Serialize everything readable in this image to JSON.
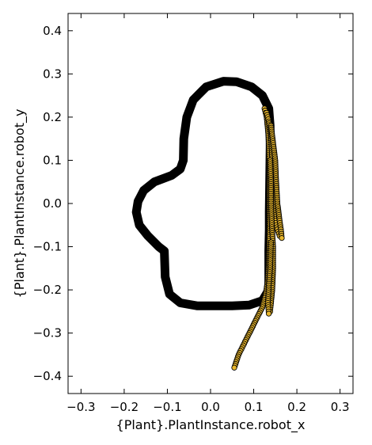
{
  "chart_data": {
    "type": "scatter",
    "title": "",
    "xlabel": "{Plant}.PlantInstance.robot_x",
    "ylabel": "{Plant}.PlantInstance.robot_y",
    "xlim": [
      -0.33,
      0.33
    ],
    "ylim": [
      -0.44,
      0.44
    ],
    "xticks": [
      -0.3,
      -0.2,
      -0.1,
      0.0,
      0.1,
      0.2,
      0.3
    ],
    "xtick_labels": [
      "−0.3",
      "−0.2",
      "−0.1",
      "0.0",
      "0.1",
      "0.2",
      "0.3"
    ],
    "yticks": [
      0.4,
      0.3,
      0.2,
      0.1,
      0.0,
      -0.1,
      -0.2,
      -0.3,
      -0.4
    ],
    "ytick_labels": [
      "0.4",
      "0.3",
      "0.2",
      "0.1",
      "0.0",
      "−0.1",
      "−0.2",
      "−0.3",
      "−0.4"
    ],
    "grid": false,
    "legend": "none",
    "colors": {
      "boundary": "#000000",
      "points": "#e8b62c",
      "point_edge": "#000000"
    },
    "series": [
      {
        "kind": "boundary",
        "points": [
          [
            0.135,
            -0.11
          ],
          [
            0.135,
            -0.2
          ],
          [
            0.12,
            -0.225
          ],
          [
            0.09,
            -0.235
          ],
          [
            0.05,
            -0.237
          ],
          [
            -0.03,
            -0.237
          ],
          [
            -0.07,
            -0.23
          ],
          [
            -0.095,
            -0.21
          ],
          [
            -0.105,
            -0.17
          ],
          [
            -0.107,
            -0.11
          ],
          [
            -0.12,
            -0.1
          ],
          [
            -0.145,
            -0.075
          ],
          [
            -0.165,
            -0.05
          ],
          [
            -0.172,
            -0.02
          ],
          [
            -0.168,
            0.005
          ],
          [
            -0.155,
            0.03
          ],
          [
            -0.13,
            0.05
          ],
          [
            -0.09,
            0.065
          ],
          [
            -0.07,
            0.08
          ],
          [
            -0.063,
            0.1
          ],
          [
            -0.062,
            0.15
          ],
          [
            -0.055,
            0.2
          ],
          [
            -0.04,
            0.24
          ],
          [
            -0.01,
            0.27
          ],
          [
            0.03,
            0.283
          ],
          [
            0.06,
            0.282
          ],
          [
            0.095,
            0.27
          ],
          [
            0.12,
            0.25
          ],
          [
            0.135,
            0.22
          ],
          [
            0.138,
            0.18
          ],
          [
            0.138,
            0.13
          ],
          [
            0.137,
            0.05
          ],
          [
            0.136,
            -0.02
          ],
          [
            0.136,
            -0.06
          ],
          [
            0.135,
            -0.11
          ]
        ]
      },
      {
        "kind": "trajectory",
        "points": [
          [
            0.125,
            0.22
          ],
          [
            0.13,
            0.2
          ],
          [
            0.133,
            0.17
          ],
          [
            0.135,
            0.14
          ],
          [
            0.136,
            0.1
          ],
          [
            0.137,
            0.05
          ],
          [
            0.137,
            0.0
          ],
          [
            0.137,
            -0.05
          ],
          [
            0.136,
            -0.1
          ],
          [
            0.135,
            -0.14
          ],
          [
            0.132,
            -0.18
          ],
          [
            0.128,
            -0.21
          ],
          [
            0.12,
            -0.24
          ],
          [
            0.1,
            -0.28
          ],
          [
            0.08,
            -0.32
          ],
          [
            0.065,
            -0.35
          ],
          [
            0.055,
            -0.38
          ]
        ]
      },
      {
        "kind": "trajectory",
        "points": [
          [
            0.13,
            0.21
          ],
          [
            0.135,
            0.19
          ],
          [
            0.14,
            0.16
          ],
          [
            0.143,
            0.1
          ],
          [
            0.145,
            0.05
          ],
          [
            0.147,
            0.0
          ],
          [
            0.15,
            -0.04
          ],
          [
            0.155,
            -0.06
          ],
          [
            0.16,
            -0.075
          ]
        ]
      },
      {
        "kind": "trajectory",
        "points": [
          [
            0.14,
            0.18
          ],
          [
            0.145,
            0.14
          ],
          [
            0.15,
            0.1
          ],
          [
            0.152,
            0.05
          ],
          [
            0.155,
            0.0
          ],
          [
            0.16,
            -0.04
          ],
          [
            0.163,
            -0.06
          ],
          [
            0.165,
            -0.08
          ]
        ]
      },
      {
        "kind": "trajectory",
        "points": [
          [
            0.138,
            0.1
          ],
          [
            0.14,
            0.05
          ],
          [
            0.14,
            0.0
          ],
          [
            0.142,
            -0.05
          ],
          [
            0.145,
            -0.1
          ],
          [
            0.145,
            -0.15
          ],
          [
            0.143,
            -0.2
          ],
          [
            0.14,
            -0.23
          ],
          [
            0.138,
            -0.25
          ]
        ]
      },
      {
        "kind": "trajectory",
        "points": [
          [
            0.14,
            -0.09
          ],
          [
            0.138,
            -0.15
          ],
          [
            0.135,
            -0.19
          ],
          [
            0.133,
            -0.23
          ],
          [
            0.135,
            -0.255
          ]
        ]
      }
    ]
  }
}
